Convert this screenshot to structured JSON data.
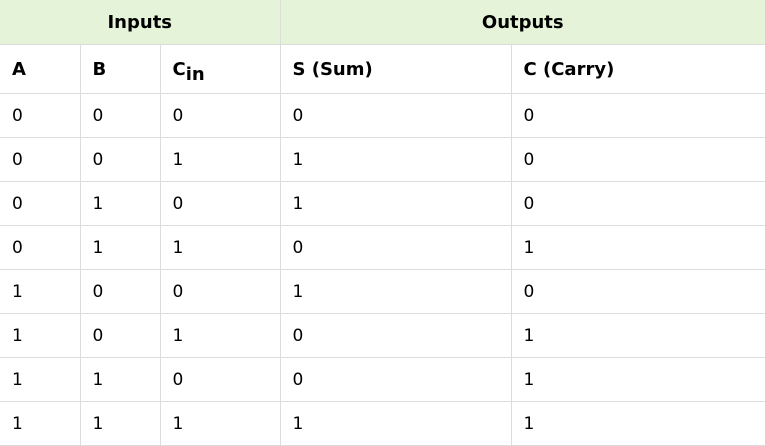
{
  "groups": {
    "inputs": "Inputs",
    "outputs": "Outputs"
  },
  "headers": {
    "a": "A",
    "b": "B",
    "cin_main": "C",
    "cin_sub": "in",
    "sum": "S (Sum)",
    "carry": "C (Carry)"
  },
  "rows": [
    {
      "a": "0",
      "b": "0",
      "cin": "0",
      "s": "0",
      "c": "0"
    },
    {
      "a": "0",
      "b": "0",
      "cin": "1",
      "s": "1",
      "c": "0"
    },
    {
      "a": "0",
      "b": "1",
      "cin": "0",
      "s": "1",
      "c": "0"
    },
    {
      "a": "0",
      "b": "1",
      "cin": "1",
      "s": "0",
      "c": "1"
    },
    {
      "a": "1",
      "b": "0",
      "cin": "0",
      "s": "1",
      "c": "0"
    },
    {
      "a": "1",
      "b": "0",
      "cin": "1",
      "s": "0",
      "c": "1"
    },
    {
      "a": "1",
      "b": "1",
      "cin": "0",
      "s": "0",
      "c": "1"
    },
    {
      "a": "1",
      "b": "1",
      "cin": "1",
      "s": "1",
      "c": "1"
    }
  ],
  "colors": {
    "group_header_bg": "#e5f4d9",
    "border": "#dcdcdc"
  }
}
